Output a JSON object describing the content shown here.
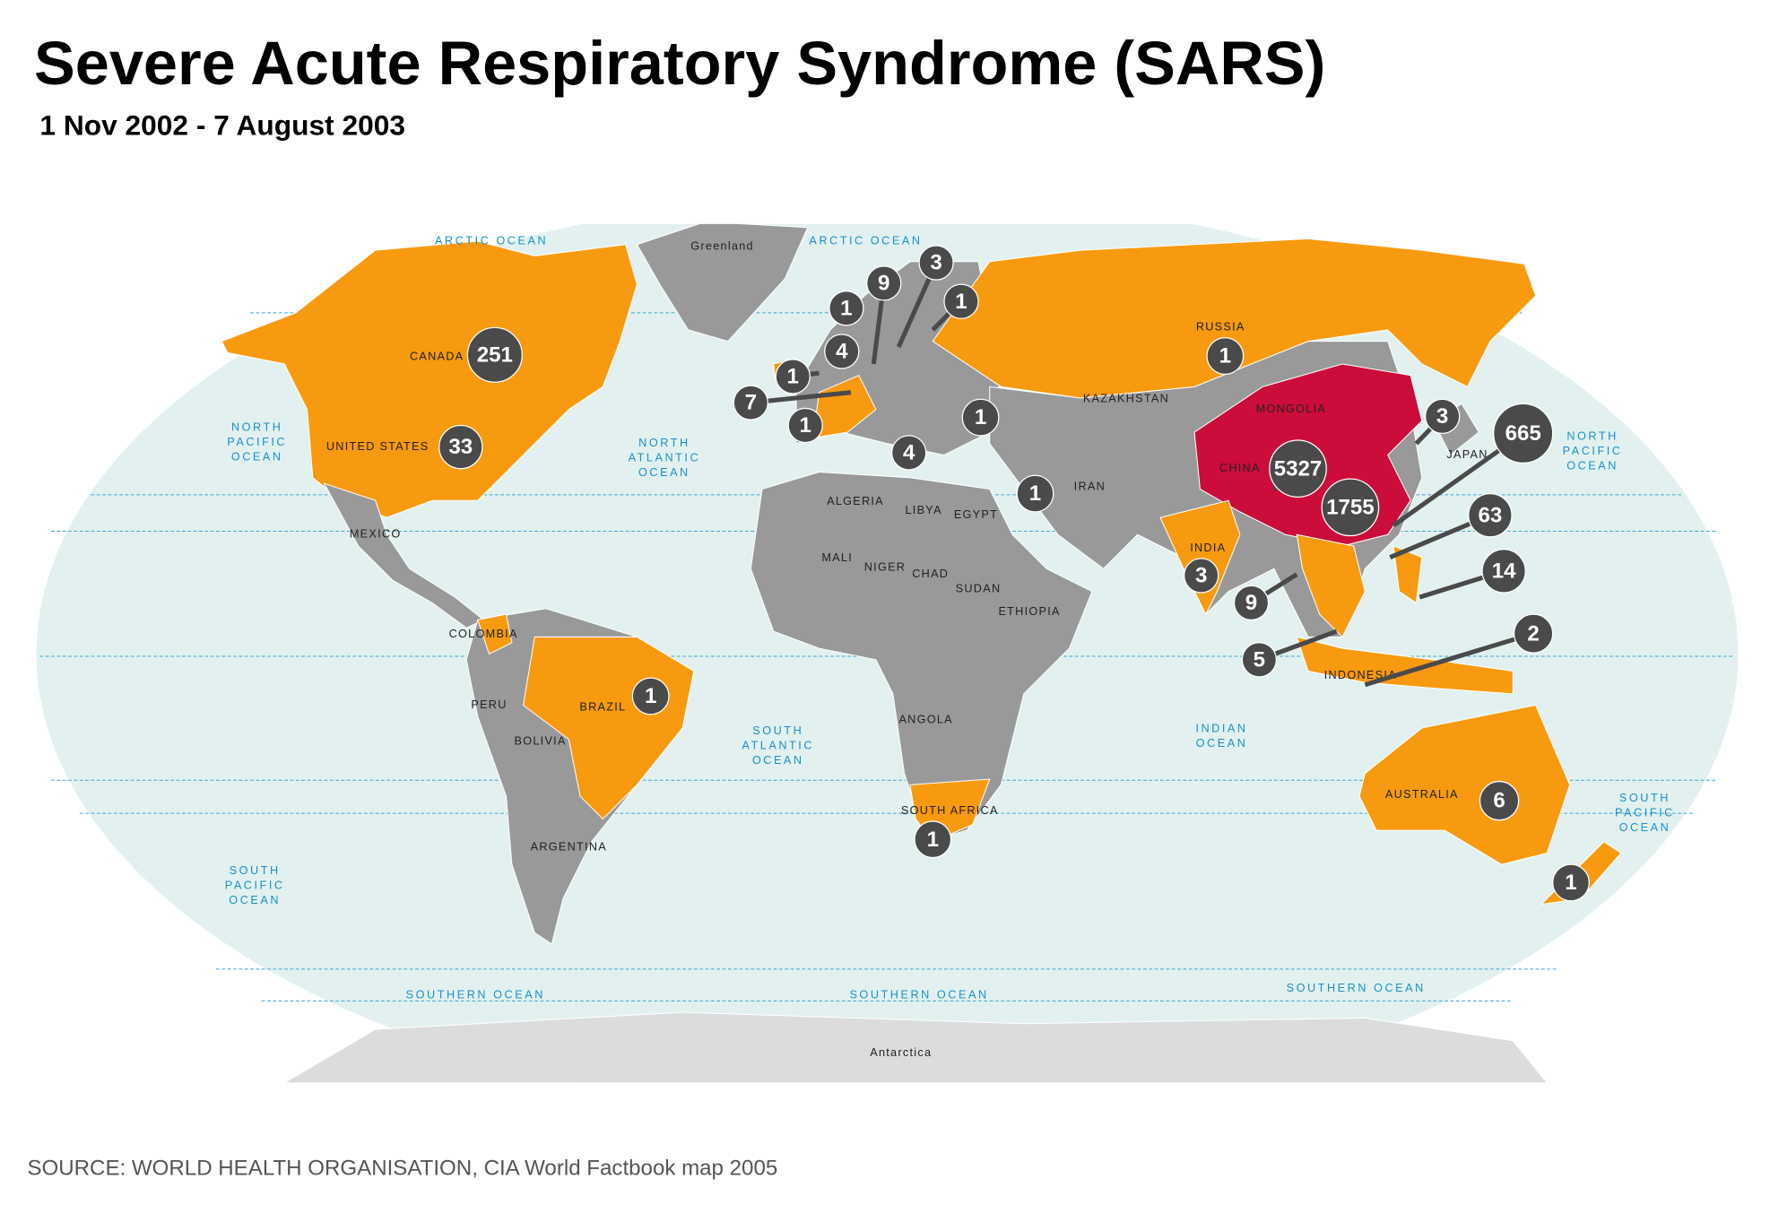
{
  "header": {
    "title": "Severe Acute Respiratory Syndrome (SARS)",
    "subtitle": "1 Nov 2002 - 7 August 2003"
  },
  "map": {
    "case_counts": [
      251,
      33,
      1,
      1,
      1,
      5327,
      1755,
      665,
      63,
      14,
      2,
      3,
      3,
      9,
      5,
      6,
      1,
      1,
      1,
      4,
      7,
      1,
      1,
      4,
      1,
      9,
      3,
      1
    ],
    "country_labels": [
      "CANADA",
      "UNITED STATES",
      "MEXICO",
      "BRAZIL",
      "PERU",
      "BOLIVIA",
      "ARGENTINA",
      "COLOMBIA",
      "ALGERIA",
      "LIBYA",
      "EGYPT",
      "MALI",
      "NIGER",
      "CHAD",
      "SUDAN",
      "ETHIOPIA",
      "ANGOLA",
      "SOUTH AFRICA",
      "RUSSIA",
      "KAZAKHSTAN",
      "MONGOLIA",
      "CHINA",
      "IRAN",
      "INDIA",
      "INDONESIA",
      "AUSTRALIA",
      "JAPAN",
      "Greenland",
      "Antarctica"
    ],
    "ocean_labels": [
      [
        "NORTH",
        "PACIFIC",
        "OCEAN"
      ],
      [
        "NORTH",
        "ATLANTIC",
        "OCEAN"
      ],
      [
        "SOUTH",
        "ATLANTIC",
        "OCEAN"
      ],
      [
        "INDIAN",
        "OCEAN"
      ],
      [
        "SOUTH",
        "PACIFIC",
        "OCEAN"
      ],
      [
        "NORTH",
        "PACIFIC",
        "OCEAN"
      ],
      [
        "SOUTH",
        "PACIFIC",
        "OCEAN"
      ],
      [
        "ARCTIC OCEAN"
      ],
      [
        "ARCTIC OCEAN"
      ],
      [
        "SOUTHERN OCEAN"
      ],
      [
        "SOUTHERN OCEAN"
      ],
      [
        "SOUTHERN OCEAN"
      ]
    ]
  },
  "footer": {
    "source": "SOURCE: WORLD HEALTH ORGANISATION, CIA World Factbook map 2005"
  }
}
